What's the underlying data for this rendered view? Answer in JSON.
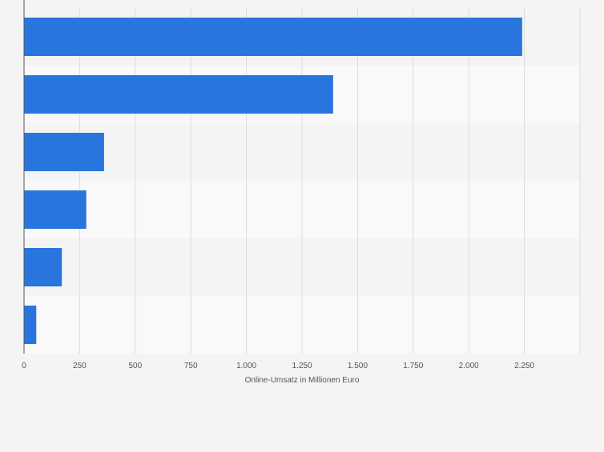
{
  "chart_data": {
    "type": "bar",
    "orientation": "horizontal",
    "categories": [
      "",
      "",
      "",
      "",
      "",
      ""
    ],
    "values": [
      2240,
      1390,
      360,
      280,
      170,
      55
    ],
    "xlabel": "Online-Umsatz in Millionen Euro",
    "xlim": [
      0,
      2500
    ],
    "xticks": [
      0,
      250,
      500,
      750,
      1000,
      1250,
      1500,
      1750,
      2000,
      2250
    ],
    "xtick_labels": [
      "0",
      "250",
      "500",
      "750",
      "1.000",
      "1.250",
      "1.500",
      "1.750",
      "2.000",
      "2.250"
    ],
    "grid": "vertical",
    "bar_color": "#2876dd"
  }
}
